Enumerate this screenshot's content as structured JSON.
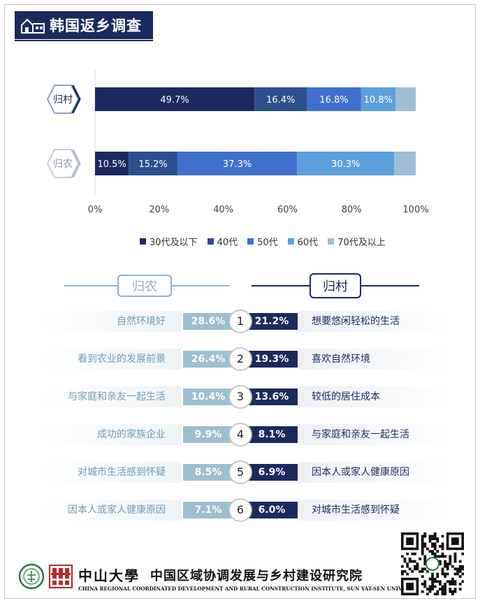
{
  "header": {
    "title": "韩国返乡调查",
    "icon": "house-icon"
  },
  "chart_data": {
    "type": "bar",
    "orientation": "horizontal",
    "stacked": true,
    "categories": [
      "归村",
      "归农"
    ],
    "series": [
      {
        "name": "30代及以下",
        "color": "#1b2a5e",
        "values": [
          49.7,
          10.5
        ]
      },
      {
        "name": "40代",
        "color": "#2e4f8e",
        "values": [
          16.4,
          15.2
        ]
      },
      {
        "name": "50代",
        "color": "#4070cc",
        "values": [
          16.8,
          37.3
        ]
      },
      {
        "name": "60代",
        "color": "#5d9fdb",
        "values": [
          10.8,
          30.3
        ]
      },
      {
        "name": "70代及以上",
        "color": "#9cbfd6",
        "values": [
          6.3,
          6.7
        ]
      }
    ],
    "data_labels": [
      [
        "49.7%",
        "16.4%",
        "16.8%",
        "10.8%",
        ""
      ],
      [
        "10.5%",
        "15.2%",
        "37.3%",
        "30.3%",
        ""
      ]
    ],
    "xlim": [
      0,
      100
    ],
    "xticks": [
      "0%",
      "20%",
      "40%",
      "60%",
      "80%",
      "100%"
    ],
    "legend_position": "bottom",
    "grid": false
  },
  "comparison": {
    "left_title": "归农",
    "right_title": "归村",
    "rows": [
      {
        "rank": "1",
        "left_label": "自然环境好",
        "left_value": "28.6%",
        "right_value": "21.2%",
        "right_label": "想要悠闲轻松的生活"
      },
      {
        "rank": "2",
        "left_label": "看到农业的发展前景",
        "left_value": "26.4%",
        "right_value": "19.3%",
        "right_label": "喜欢自然环境"
      },
      {
        "rank": "3",
        "left_label": "与家庭和亲友一起生活",
        "left_value": "10.4%",
        "right_value": "13.6%",
        "right_label": "较低的居住成本"
      },
      {
        "rank": "4",
        "left_label": "成功的家族企业",
        "left_value": "9.9%",
        "right_value": "8.1%",
        "right_label": "与家庭和亲友一起生活"
      },
      {
        "rank": "5",
        "left_label": "对城市生活感到怀疑",
        "left_value": "8.5%",
        "right_value": "6.9%",
        "right_label": "因本人或家人健康原因"
      },
      {
        "rank": "6",
        "left_label": "因本人或家人健康原因",
        "left_value": "7.1%",
        "right_value": "6.0%",
        "right_label": "对城市生活感到怀疑"
      }
    ]
  },
  "footer": {
    "university": "中山大學",
    "institute": "中国区域协调发展与乡村建设研究院",
    "english": "CHINA REGIONAL COORDINATED DEVELOPMENT AND RURAL CONSTRUCTION INSTITUTE, SUN YAT-SEN UNIVERSITY"
  }
}
